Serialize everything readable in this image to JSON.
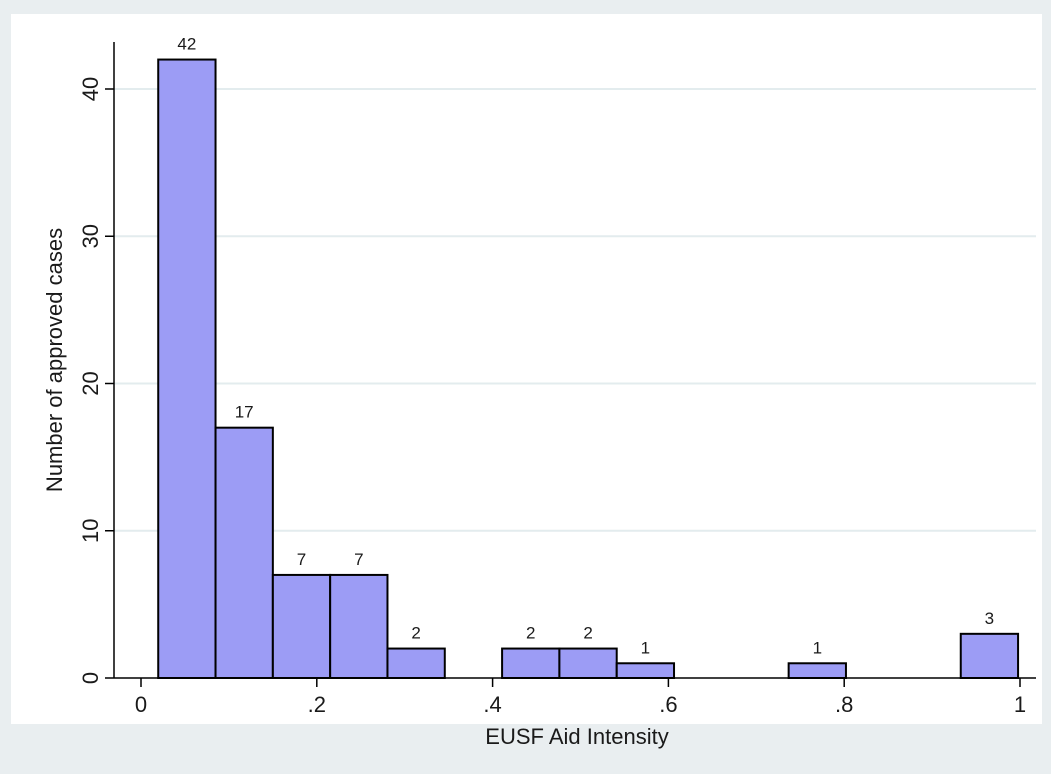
{
  "chart_data": {
    "type": "bar",
    "title": "",
    "xlabel": "EUSF Aid Intensity",
    "ylabel": "Number of approved cases",
    "xlim": [
      0,
      1
    ],
    "ylim": [
      0,
      42
    ],
    "x_ticks": [
      0,
      0.2,
      0.4,
      0.6,
      0.8,
      1
    ],
    "x_tick_labels": [
      "0",
      ".2",
      ".4",
      ".6",
      ".8",
      "1"
    ],
    "y_ticks": [
      0,
      10,
      20,
      30,
      40
    ],
    "y_tick_labels": [
      "0",
      "10",
      "20",
      "30",
      "40"
    ],
    "grid": "horizontal",
    "bars": [
      {
        "x0": 0.0196,
        "x1": 0.0848,
        "value": 42,
        "label": "42"
      },
      {
        "x0": 0.0848,
        "x1": 0.15,
        "value": 17,
        "label": "17"
      },
      {
        "x0": 0.15,
        "x1": 0.2152,
        "value": 7,
        "label": "7"
      },
      {
        "x0": 0.2152,
        "x1": 0.2804,
        "value": 7,
        "label": "7"
      },
      {
        "x0": 0.2804,
        "x1": 0.3456,
        "value": 2,
        "label": "2"
      },
      {
        "x0": 0.4108,
        "x1": 0.476,
        "value": 2,
        "label": "2"
      },
      {
        "x0": 0.476,
        "x1": 0.5412,
        "value": 2,
        "label": "2"
      },
      {
        "x0": 0.5412,
        "x1": 0.6064,
        "value": 1,
        "label": "1"
      },
      {
        "x0": 0.7368,
        "x1": 0.802,
        "value": 1,
        "label": "1"
      },
      {
        "x0": 0.9326,
        "x1": 0.9978,
        "value": 3,
        "label": "3"
      }
    ],
    "colors": {
      "bar_fill": "#9c9cf5",
      "bar_stroke": "#000000",
      "plot_background": "#ffffff",
      "outer_background": "#e9eef0",
      "grid": "#e3ecee"
    }
  }
}
